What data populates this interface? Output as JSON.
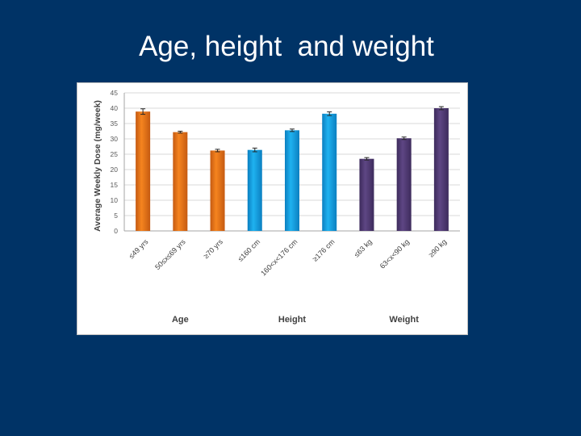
{
  "slide": {
    "title": "Age, height  and weight"
  },
  "chart_data": {
    "type": "bar",
    "title": "",
    "ylabel": "Average Weekly Dose (mg/week)",
    "ylim": [
      0,
      45
    ],
    "yticks": [
      0,
      5,
      10,
      15,
      20,
      25,
      30,
      35,
      40,
      45
    ],
    "grid": true,
    "categories": [
      "≤49 yrs",
      "50≤x≤69 yrs",
      "≥70 yrs",
      "≤160 cm",
      "160<x<176 cm",
      "≥176 cm",
      "≤63 kg",
      "63<x<90 kg",
      "≥90 kg"
    ],
    "values": [
      38.9,
      32.2,
      26.2,
      26.4,
      32.8,
      38.2,
      23.5,
      30.2,
      40.0
    ],
    "error": [
      0.9,
      0.3,
      0.4,
      0.6,
      0.4,
      0.6,
      0.4,
      0.4,
      0.5
    ],
    "groups": [
      {
        "label": "Age",
        "start": 0,
        "end": 2,
        "color": "#f5841f",
        "color_dark": "#c55a11"
      },
      {
        "label": "Height",
        "start": 3,
        "end": 5,
        "color": "#1fb2f0",
        "color_dark": "#0b7fc0"
      },
      {
        "label": "Weight",
        "start": 6,
        "end": 8,
        "color": "#5e4684",
        "color_dark": "#3d2b5c"
      }
    ]
  }
}
